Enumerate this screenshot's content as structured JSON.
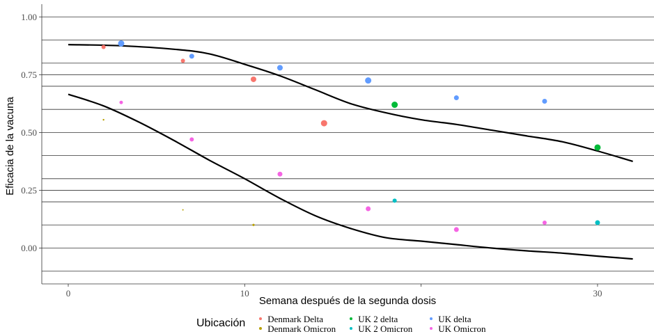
{
  "chart_data": {
    "type": "scatter",
    "xlabel": "Semana después de la segunda dosis",
    "ylabel": "Eficacia de la vacuna",
    "xlim": [
      -1.5,
      33.2
    ],
    "ylim": [
      -0.155,
      1.055
    ],
    "x_ticks": [
      {
        "value": 0,
        "label": "0"
      },
      {
        "value": 10,
        "label": "10"
      },
      {
        "value": 20,
        "label": ""
      },
      {
        "value": 30,
        "label": "30"
      }
    ],
    "y_ticks": [
      {
        "value": 0.0,
        "label": "0.00"
      },
      {
        "value": 0.25,
        "label": "0.25"
      },
      {
        "value": 0.5,
        "label": "0.50"
      },
      {
        "value": 0.75,
        "label": "0.75"
      },
      {
        "value": 1.0,
        "label": "1.00"
      }
    ],
    "gridlines_y": [
      -0.1,
      0.0,
      0.1,
      0.2,
      0.25,
      0.3,
      0.4,
      0.5,
      0.6,
      0.7,
      0.75,
      0.8,
      0.9,
      1.0
    ],
    "grid": true,
    "legend": {
      "title": "Ubicación",
      "position": "bottom"
    },
    "series": [
      {
        "name": "Denmark Delta",
        "color": "#f8766d",
        "points": [
          {
            "x": 2,
            "y": 0.87,
            "size": 3
          },
          {
            "x": 6.5,
            "y": 0.81,
            "size": 3
          },
          {
            "x": 10.5,
            "y": 0.73,
            "size": 4
          },
          {
            "x": 14.5,
            "y": 0.54,
            "size": 4.5
          }
        ]
      },
      {
        "name": "Denmark Omicron",
        "color": "#b79f00",
        "points": [
          {
            "x": 2,
            "y": 0.555,
            "size": 1.2
          },
          {
            "x": 6.5,
            "y": 0.165,
            "size": 1
          },
          {
            "x": 10.5,
            "y": 0.1,
            "size": 1.6
          }
        ]
      },
      {
        "name": "UK 2 delta",
        "color": "#00ba38",
        "points": [
          {
            "x": 18.5,
            "y": 0.62,
            "size": 4.5
          },
          {
            "x": 30,
            "y": 0.435,
            "size": 4.5
          }
        ]
      },
      {
        "name": "UK 2 Omicron",
        "color": "#00bfc4",
        "points": [
          {
            "x": 18.5,
            "y": 0.205,
            "size": 3
          },
          {
            "x": 30,
            "y": 0.11,
            "size": 3.5
          }
        ]
      },
      {
        "name": "UK delta",
        "color": "#619cff",
        "points": [
          {
            "x": 3,
            "y": 0.885,
            "size": 4.5
          },
          {
            "x": 7,
            "y": 0.83,
            "size": 3.5
          },
          {
            "x": 12,
            "y": 0.78,
            "size": 4
          },
          {
            "x": 17,
            "y": 0.725,
            "size": 4.5
          },
          {
            "x": 22,
            "y": 0.65,
            "size": 3.5
          },
          {
            "x": 27,
            "y": 0.635,
            "size": 3.5
          }
        ]
      },
      {
        "name": "UK Omicron",
        "color": "#f564e3",
        "points": [
          {
            "x": 3,
            "y": 0.63,
            "size": 2.5
          },
          {
            "x": 7,
            "y": 0.47,
            "size": 3
          },
          {
            "x": 12,
            "y": 0.32,
            "size": 3.5
          },
          {
            "x": 17,
            "y": 0.17,
            "size": 3.5
          },
          {
            "x": 22,
            "y": 0.08,
            "size": 3.5
          },
          {
            "x": 27,
            "y": 0.11,
            "size": 3
          }
        ]
      }
    ],
    "trend_lines": [
      {
        "color": "#000000",
        "x": [
          0,
          3,
          6,
          8,
          10,
          12,
          14,
          16,
          18,
          20,
          22,
          24,
          26,
          28,
          30,
          32
        ],
        "y": [
          0.88,
          0.875,
          0.86,
          0.84,
          0.795,
          0.745,
          0.685,
          0.625,
          0.585,
          0.555,
          0.535,
          0.51,
          0.485,
          0.46,
          0.42,
          0.375
        ]
      },
      {
        "color": "#000000",
        "x": [
          0,
          2,
          4,
          6,
          8,
          10,
          12,
          14,
          16,
          18,
          20,
          22,
          24,
          26,
          28,
          30,
          32
        ],
        "y": [
          0.665,
          0.615,
          0.545,
          0.465,
          0.38,
          0.3,
          0.215,
          0.14,
          0.085,
          0.045,
          0.03,
          0.015,
          0.0,
          -0.012,
          -0.022,
          -0.035,
          -0.047
        ]
      }
    ]
  }
}
